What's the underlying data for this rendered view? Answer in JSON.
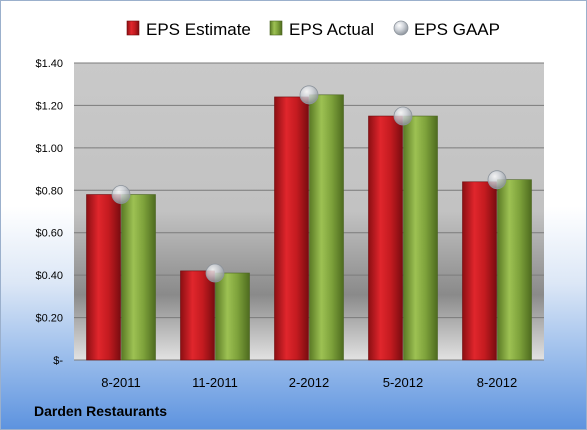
{
  "company": "Darden Restaurants",
  "chart_data": {
    "type": "bar",
    "categories": [
      "8-2011",
      "11-2011",
      "2-2012",
      "5-2012",
      "8-2012"
    ],
    "series": [
      {
        "name": "EPS Estimate",
        "values": [
          0.78,
          0.42,
          1.24,
          1.15,
          0.84
        ],
        "color": "#c0191e",
        "kind": "bar"
      },
      {
        "name": "EPS Actual",
        "values": [
          0.78,
          0.41,
          1.25,
          1.15,
          0.85
        ],
        "color": "#7ea23b",
        "kind": "bar"
      },
      {
        "name": "EPS GAAP",
        "values": [
          0.78,
          0.41,
          1.25,
          1.15,
          0.85
        ],
        "color": "#b9bfc7",
        "kind": "marker"
      }
    ],
    "yticks": [
      "$-",
      "$0.20",
      "$0.40",
      "$0.60",
      "$0.80",
      "$1.00",
      "$1.20",
      "$1.40"
    ],
    "ylim": [
      0,
      1.4
    ],
    "grid": true,
    "legend_position": "top"
  }
}
